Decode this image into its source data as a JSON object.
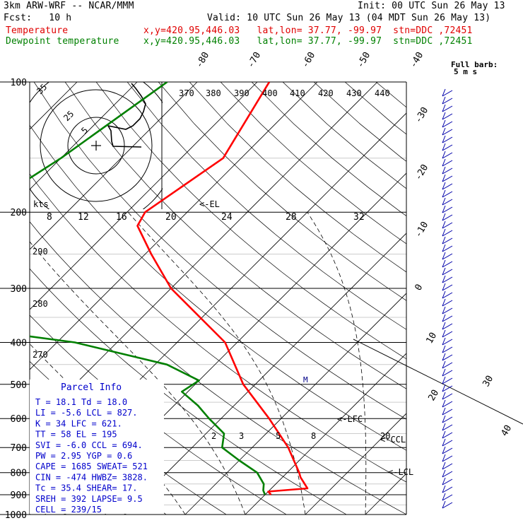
{
  "header": {
    "line1_left": "3km ARW-WRF -- NCAR/MMM",
    "line1_right": "Init: 00 UTC Sun 26 May 13",
    "line2_left": "Fcst:   10 h",
    "line2_right": "Valid: 10 UTC Sun 26 May 13 (04 MDT Sun 26 May 13)",
    "temp_label": "Temperature",
    "temp_info": "x,y=420.95,446.03   lat,lon= 37.77, -99.97  stn=DDC ,72451",
    "dew_label": "Dewpoint temperature",
    "dew_info": "x,y=420.95,446.03   lat,lon= 37.77, -99.97  stn=DDC ,72451",
    "temp_color": "#ff0000",
    "dew_color": "#008000"
  },
  "chart_data": {
    "type": "line",
    "title": "Skew-T log-P sounding",
    "ylabel": "Pressure (hPa)",
    "pressure_ticks": [
      "100",
      "200",
      "300",
      "400",
      "500",
      "600",
      "700",
      "800",
      "900",
      "1000"
    ],
    "isotherm_labels": [
      "-80",
      "-70",
      "-60",
      "-50",
      "-40",
      "-30",
      "-20",
      "-10",
      "0",
      "10",
      "20",
      "30",
      "40"
    ],
    "theta_labels": [
      "370",
      "380",
      "390",
      "400",
      "410",
      "420",
      "430",
      "440"
    ],
    "theta_left_labels": [
      "290",
      "280",
      "270"
    ],
    "mixing_ratio_labels": [
      "2",
      "3",
      "5",
      "8",
      "20"
    ],
    "hodograph_speed_labels": [
      "8",
      "12",
      "16",
      "20",
      "24",
      "28",
      "32"
    ],
    "hodograph_units": "kts",
    "hodograph_rings": [
      "5",
      "25",
      "35"
    ],
    "levels": [
      "<-EL",
      "<-LFC",
      "<-CCL",
      "<-LCL"
    ],
    "level_marker": "M",
    "barb_legend": "Full barb:\n5 m s",
    "series": [
      {
        "name": "Temperature",
        "pressure": [
          100,
          150,
          200,
          215,
          250,
          300,
          400,
          500,
          600,
          700,
          800,
          820,
          870,
          885,
          900
        ],
        "temperature": [
          -58,
          -53,
          -57,
          -56,
          -49,
          -40,
          -22,
          -12,
          -2,
          6,
          12,
          13,
          16,
          10,
          11
        ]
      },
      {
        "name": "Dewpoint temperature",
        "pressure": [
          100,
          150,
          200,
          225,
          250,
          270,
          300,
          320,
          340,
          360,
          400,
          450,
          490,
          520,
          560,
          600,
          650,
          700,
          750,
          800,
          850,
          880,
          900
        ],
        "temperature": [
          -75,
          -80,
          -85,
          -82,
          -77,
          -80,
          -70,
          -67,
          -71,
          -75,
          -47,
          -28,
          -20,
          -21,
          -16,
          -12,
          -7,
          -5,
          0,
          5,
          8,
          9,
          10
        ]
      }
    ]
  },
  "parcel": {
    "title": "Parcel Info",
    "rows": [
      "T  =   18.1  Td =  18.0",
      "LI =   -5.6  LCL =  827.",
      "K  =     34  LFC =  621.",
      "TT =     58  EL  =   195",
      "SVI =  -6.0  CCL =  694.",
      "PW =   2.95  YGP =   0.6",
      "CAPE =  1685  SWEAT=  521",
      "CIN =  -474  HWBZ= 3828.",
      "Tc =   35.4  SHEAR=   17.",
      "SREH =  392  LAPSE=   9.5",
      "CELL = 239/15"
    ]
  }
}
